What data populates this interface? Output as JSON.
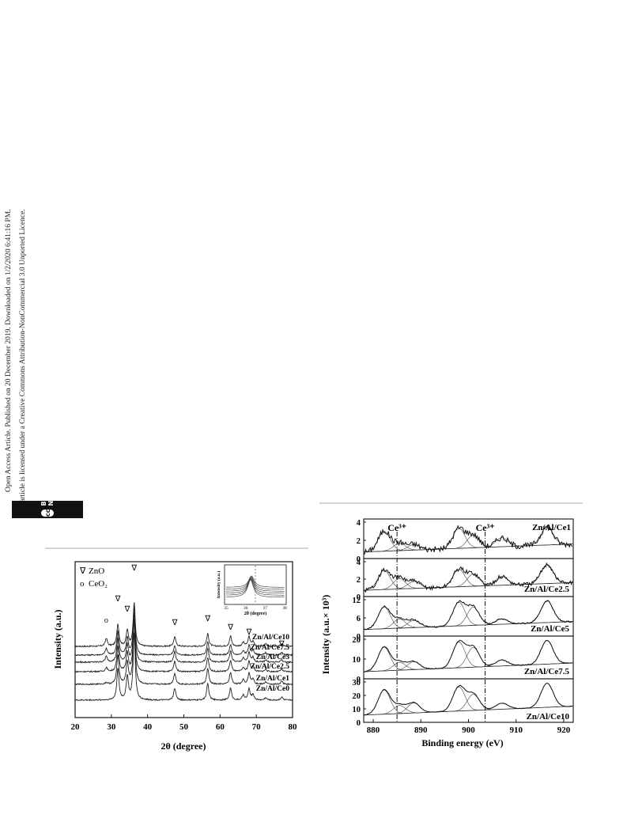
{
  "sidebar": {
    "line1": "Open Access Article. Published on 20 December 2019. Downloaded on 1/2/2020 6:41:16 PM.",
    "line2": "This article is licensed under a Creative Commons Attribution-NonCommercial 3.0 Unported Licence.",
    "badge_cc": "cc",
    "badge_label": "BY-NC"
  },
  "chart_data": [
    {
      "type": "line",
      "xlabel": "2θ (degree)",
      "ylabel": "Intensity (a.u.)",
      "xlim": [
        20,
        80
      ],
      "xticks": [
        20,
        30,
        40,
        50,
        60,
        70,
        80
      ],
      "legend": [
        {
          "symbol": "∇",
          "name": "ZnO"
        },
        {
          "symbol": "o",
          "name": "CeO₂"
        }
      ],
      "series": [
        {
          "name": "Zn/Al/Ce10"
        },
        {
          "name": "Zn/Al/Ce7.5"
        },
        {
          "name": "Zn/Al/Ce5"
        },
        {
          "name": "Zn/Al/Ce2.5"
        },
        {
          "name": "Zn/Al/Ce1"
        },
        {
          "name": "Zn/Al/Ce0"
        }
      ],
      "peaks": [
        {
          "x": 28.6,
          "phase": "CeO2",
          "marker": "o"
        },
        {
          "x": 31.8,
          "phase": "ZnO",
          "marker": "∇"
        },
        {
          "x": 34.4,
          "phase": "ZnO",
          "marker": "∇"
        },
        {
          "x": 36.3,
          "phase": "ZnO",
          "marker": "∇"
        },
        {
          "x": 47.5,
          "phase": "ZnO",
          "marker": "∇"
        },
        {
          "x": 56.6,
          "phase": "ZnO",
          "marker": "∇"
        },
        {
          "x": 62.9,
          "phase": "ZnO",
          "marker": "∇"
        },
        {
          "x": 68.0,
          "phase": "ZnO",
          "marker": "∇"
        },
        {
          "x": 77.0,
          "phase": "ZnO",
          "marker": "∇"
        }
      ],
      "inset": {
        "xlabel": "2θ (degree)",
        "ylabel": "Intensity (a.u.)",
        "xlim": [
          35,
          38
        ],
        "xticks": [
          35,
          36,
          37,
          38
        ]
      }
    },
    {
      "type": "line",
      "xlabel": "Binding energy (eV)",
      "ylabel": "Intensity (a.u.× 10³)",
      "xlim": [
        878,
        922
      ],
      "xticks": [
        880,
        890,
        900,
        910,
        920
      ],
      "annotations": [
        {
          "text": "Ce³⁺",
          "x": 885
        },
        {
          "text": "Ce³⁺",
          "x": 903.5
        }
      ],
      "panels": [
        {
          "name": "Zn/Al/Ce1",
          "ylim": [
            0,
            4
          ],
          "yticks": [
            0,
            2,
            4
          ]
        },
        {
          "name": "Zn/Al/Ce2.5",
          "ylim": [
            0,
            4
          ],
          "yticks": [
            0,
            2,
            4
          ]
        },
        {
          "name": "Zn/Al/Ce5",
          "ylim": [
            0,
            12
          ],
          "yticks": [
            0,
            6,
            12
          ]
        },
        {
          "name": "Zn/Al/Ce7.5",
          "ylim": [
            0,
            20
          ],
          "yticks": [
            0,
            10,
            20
          ]
        },
        {
          "name": "Zn/Al/Ce10",
          "ylim": [
            0,
            30
          ],
          "yticks": [
            0,
            10,
            20,
            30
          ]
        }
      ]
    }
  ]
}
